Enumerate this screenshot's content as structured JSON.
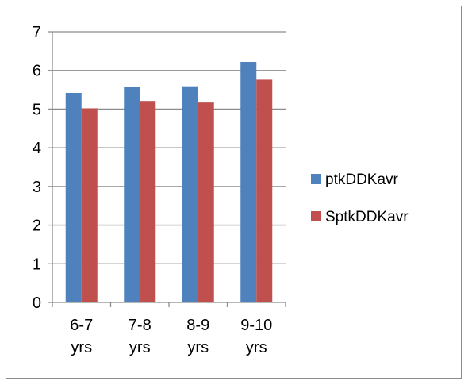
{
  "chart_data": {
    "type": "bar",
    "categories": [
      [
        "6-7",
        "yrs"
      ],
      [
        "7-8",
        "yrs"
      ],
      [
        "8-9",
        "yrs"
      ],
      [
        "9-10",
        "yrs"
      ]
    ],
    "series": [
      {
        "name": "ptkDDKavr",
        "color": "#4f81bd",
        "values": [
          5.42,
          5.57,
          5.59,
          6.22
        ]
      },
      {
        "name": "SptkDDKavr",
        "color": "#c0504d",
        "values": [
          5.02,
          5.21,
          5.17,
          5.76
        ]
      }
    ],
    "ylim": [
      0,
      7
    ],
    "yticks": [
      "0",
      "1",
      "2",
      "3",
      "4",
      "5",
      "6",
      "7"
    ],
    "grid": true,
    "legend": "right",
    "title": "",
    "xlabel": "",
    "ylabel": ""
  }
}
